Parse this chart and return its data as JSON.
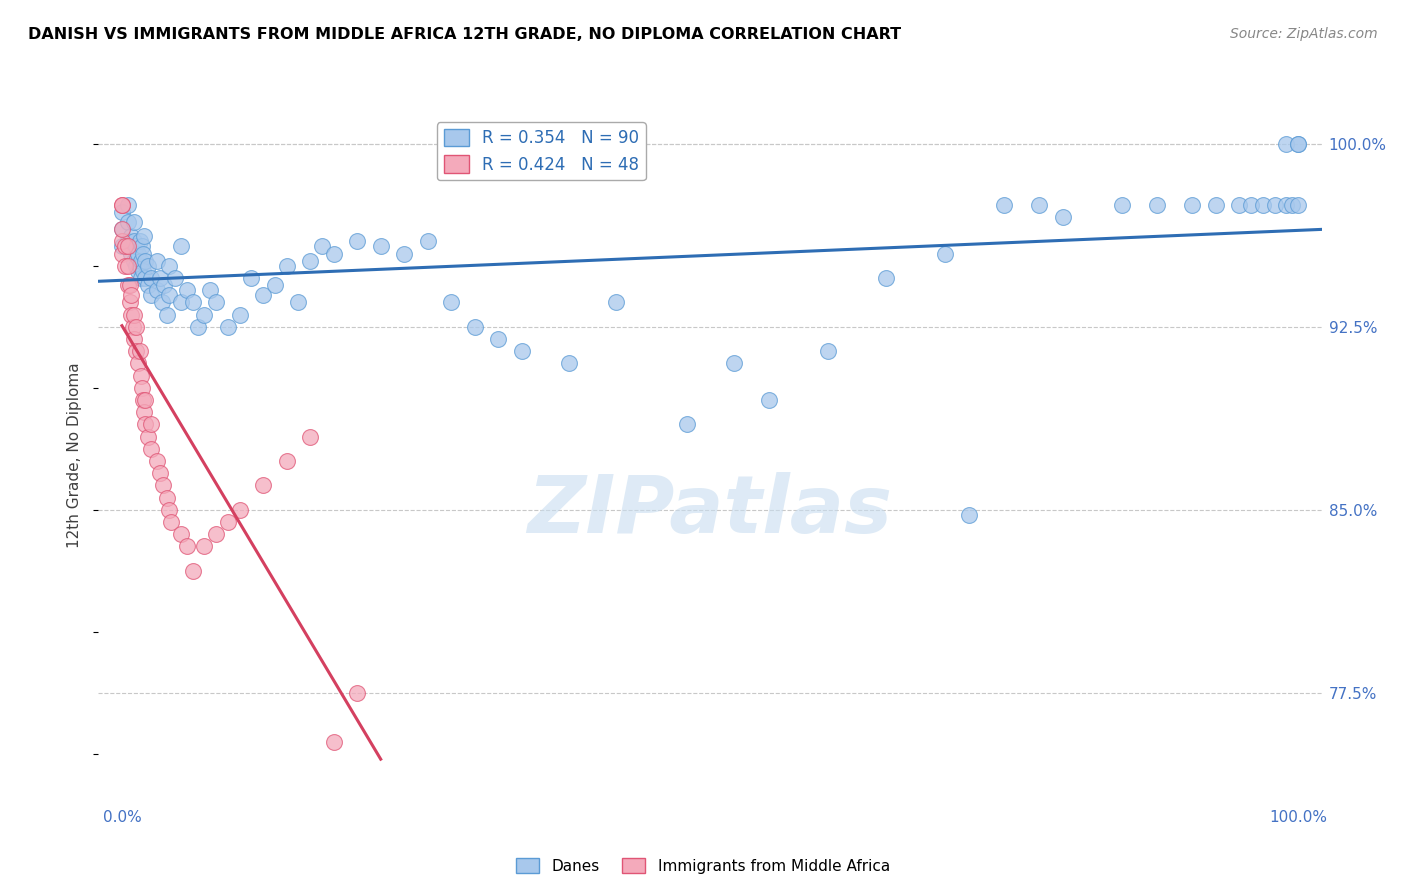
{
  "title": "DANISH VS IMMIGRANTS FROM MIDDLE AFRICA 12TH GRADE, NO DIPLOMA CORRELATION CHART",
  "source": "Source: ZipAtlas.com",
  "ylabel": "12th Grade, No Diploma",
  "danes_R": 0.354,
  "danes_N": 90,
  "immigrants_R": 0.424,
  "immigrants_N": 48,
  "legend_label_danes": "Danes",
  "legend_label_immigrants": "Immigrants from Middle Africa",
  "danes_color": "#A8C8EC",
  "danes_edge_color": "#5B9BD5",
  "immigrants_color": "#F4AABB",
  "immigrants_edge_color": "#E05575",
  "danes_line_color": "#2E6DB4",
  "immigrants_line_color": "#D44060",
  "watermark_color": "#C8DDF0",
  "ytick_color": "#4472C4",
  "xtick_color": "#4472C4",
  "ylabel_color": "#404040",
  "title_color": "#000000",
  "source_color": "#888888",
  "grid_color": "#C8C8C8",
  "ylim_low": 73.0,
  "ylim_high": 101.5,
  "xlim_low": -0.02,
  "xlim_high": 1.02,
  "danes_x": [
    0.0,
    0.0,
    0.0,
    0.005,
    0.005,
    0.005,
    0.008,
    0.008,
    0.01,
    0.01,
    0.01,
    0.012,
    0.012,
    0.014,
    0.014,
    0.015,
    0.015,
    0.016,
    0.016,
    0.017,
    0.018,
    0.018,
    0.019,
    0.02,
    0.02,
    0.022,
    0.022,
    0.025,
    0.025,
    0.03,
    0.03,
    0.032,
    0.034,
    0.036,
    0.038,
    0.04,
    0.04,
    0.045,
    0.05,
    0.05,
    0.055,
    0.06,
    0.065,
    0.07,
    0.075,
    0.08,
    0.09,
    0.1,
    0.11,
    0.12,
    0.13,
    0.14,
    0.15,
    0.16,
    0.17,
    0.18,
    0.2,
    0.22,
    0.24,
    0.26,
    0.28,
    0.3,
    0.32,
    0.34,
    0.38,
    0.42,
    0.48,
    0.52,
    0.55,
    0.6,
    0.65,
    0.7,
    0.72,
    0.75,
    0.78,
    0.8,
    0.85,
    0.88,
    0.91,
    0.93,
    0.95,
    0.96,
    0.97,
    0.98,
    0.99,
    0.99,
    0.995,
    1.0,
    1.0,
    1.0
  ],
  "danes_y": [
    96.5,
    97.2,
    95.8,
    96.0,
    96.8,
    97.5,
    95.5,
    96.2,
    95.2,
    96.0,
    96.8,
    95.0,
    95.8,
    94.8,
    95.5,
    95.0,
    96.0,
    94.5,
    95.2,
    95.8,
    94.8,
    95.5,
    96.2,
    94.5,
    95.2,
    94.2,
    95.0,
    93.8,
    94.5,
    94.0,
    95.2,
    94.5,
    93.5,
    94.2,
    93.0,
    93.8,
    95.0,
    94.5,
    93.5,
    95.8,
    94.0,
    93.5,
    92.5,
    93.0,
    94.0,
    93.5,
    92.5,
    93.0,
    94.5,
    93.8,
    94.2,
    95.0,
    93.5,
    95.2,
    95.8,
    95.5,
    96.0,
    95.8,
    95.5,
    96.0,
    93.5,
    92.5,
    92.0,
    91.5,
    91.0,
    93.5,
    88.5,
    91.0,
    89.5,
    91.5,
    94.5,
    95.5,
    84.8,
    97.5,
    97.5,
    97.0,
    97.5,
    97.5,
    97.5,
    97.5,
    97.5,
    97.5,
    97.5,
    97.5,
    97.5,
    100.0,
    97.5,
    100.0,
    97.5,
    100.0
  ],
  "imm_x": [
    0.0,
    0.0,
    0.0,
    0.0,
    0.0,
    0.003,
    0.003,
    0.005,
    0.005,
    0.005,
    0.007,
    0.007,
    0.008,
    0.008,
    0.009,
    0.01,
    0.01,
    0.012,
    0.012,
    0.014,
    0.015,
    0.016,
    0.017,
    0.018,
    0.019,
    0.02,
    0.02,
    0.022,
    0.025,
    0.025,
    0.03,
    0.032,
    0.035,
    0.038,
    0.04,
    0.042,
    0.05,
    0.055,
    0.06,
    0.07,
    0.08,
    0.09,
    0.1,
    0.12,
    0.14,
    0.16,
    0.18,
    0.2
  ],
  "imm_y": [
    95.5,
    96.0,
    96.5,
    97.5,
    97.5,
    95.0,
    95.8,
    94.2,
    95.0,
    95.8,
    93.5,
    94.2,
    93.0,
    93.8,
    92.5,
    92.0,
    93.0,
    91.5,
    92.5,
    91.0,
    91.5,
    90.5,
    90.0,
    89.5,
    89.0,
    88.5,
    89.5,
    88.0,
    87.5,
    88.5,
    87.0,
    86.5,
    86.0,
    85.5,
    85.0,
    84.5,
    84.0,
    83.5,
    82.5,
    83.5,
    84.0,
    84.5,
    85.0,
    86.0,
    87.0,
    88.0,
    75.5,
    77.5
  ]
}
